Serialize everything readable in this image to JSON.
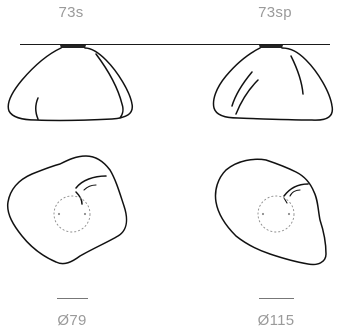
{
  "models": [
    {
      "model_label": "73s",
      "diameter_label": "Ø79"
    },
    {
      "model_label": "73sp",
      "diameter_label": "Ø115"
    }
  ]
}
